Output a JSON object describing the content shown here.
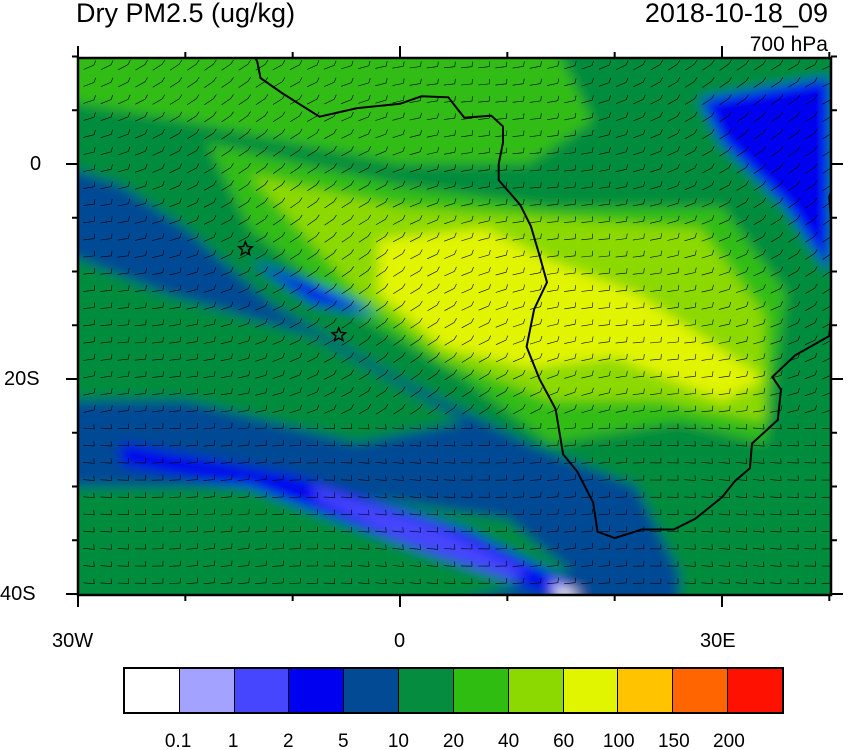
{
  "title": "Dry PM2.5 (ug/kg)",
  "valid_time": "2018-10-18_09",
  "level": "700 hPa",
  "map": {
    "lon_range": [
      -30,
      40
    ],
    "lat_range": [
      -40,
      10
    ],
    "lon_ticks": [
      {
        "value": -30,
        "label": "30W"
      },
      {
        "value": 0,
        "label": "0"
      },
      {
        "value": 30,
        "label": "30E"
      }
    ],
    "lat_ticks": [
      {
        "value": 0,
        "label": "0"
      },
      {
        "value": -20,
        "label": "20S"
      },
      {
        "value": -40,
        "label": "40S"
      }
    ],
    "markers": [
      {
        "type": "star",
        "lon": -14.4,
        "lat": -7.9
      },
      {
        "type": "star",
        "lon": -5.7,
        "lat": -15.9
      }
    ]
  },
  "colorbar": {
    "colors": [
      "#ffffff",
      "#a3a3ff",
      "#4646ff",
      "#0000f0",
      "#034a94",
      "#058c3e",
      "#30bd12",
      "#8cd902",
      "#e1f400",
      "#ffc300",
      "#ff6500",
      "#ff1100"
    ],
    "labels": [
      "0.1",
      "1",
      "2",
      "5",
      "10",
      "20",
      "40",
      "60",
      "100",
      "150",
      "200"
    ]
  }
}
